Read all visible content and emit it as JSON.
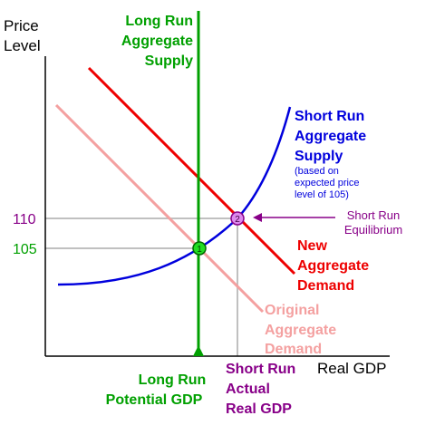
{
  "axes": {
    "y_title_line1": "Price",
    "y_title_line2": "Level",
    "x_title": "Real GDP"
  },
  "price_ticks": {
    "high": "110",
    "low": "105"
  },
  "lras": {
    "label_line1": "Long Run",
    "label_line2": "Aggregate",
    "label_line3": "Supply",
    "color": "#00a000"
  },
  "sras": {
    "label_line1": "Short Run",
    "label_line2": "Aggregate",
    "label_line3": "Supply",
    "note_line1": "(based on",
    "note_line2": "expected price",
    "note_line3": "level of 105)",
    "color": "#0000dd"
  },
  "new_ad": {
    "label_line1": "New",
    "label_line2": "Aggregate",
    "label_line3": "Demand",
    "color": "#ee0000"
  },
  "original_ad": {
    "label_line1": "Original",
    "label_line2": "Aggregate",
    "label_line3": "Demand",
    "color": "#f4a0a0"
  },
  "equilibrium_1": {
    "marker": "1",
    "color": "#22dd22"
  },
  "equilibrium_2": {
    "marker": "2",
    "color": "#dd88ee"
  },
  "sr_equilibrium": {
    "label_line1": "Short Run",
    "label_line2": "Equilibrium",
    "color": "#880088"
  },
  "lr_potential_gdp": {
    "label_line1": "Long Run",
    "label_line2": "Potential GDP"
  },
  "sr_actual_gdp": {
    "label_line1": "Short Run",
    "label_line2": "Actual",
    "label_line3": "Real GDP"
  }
}
